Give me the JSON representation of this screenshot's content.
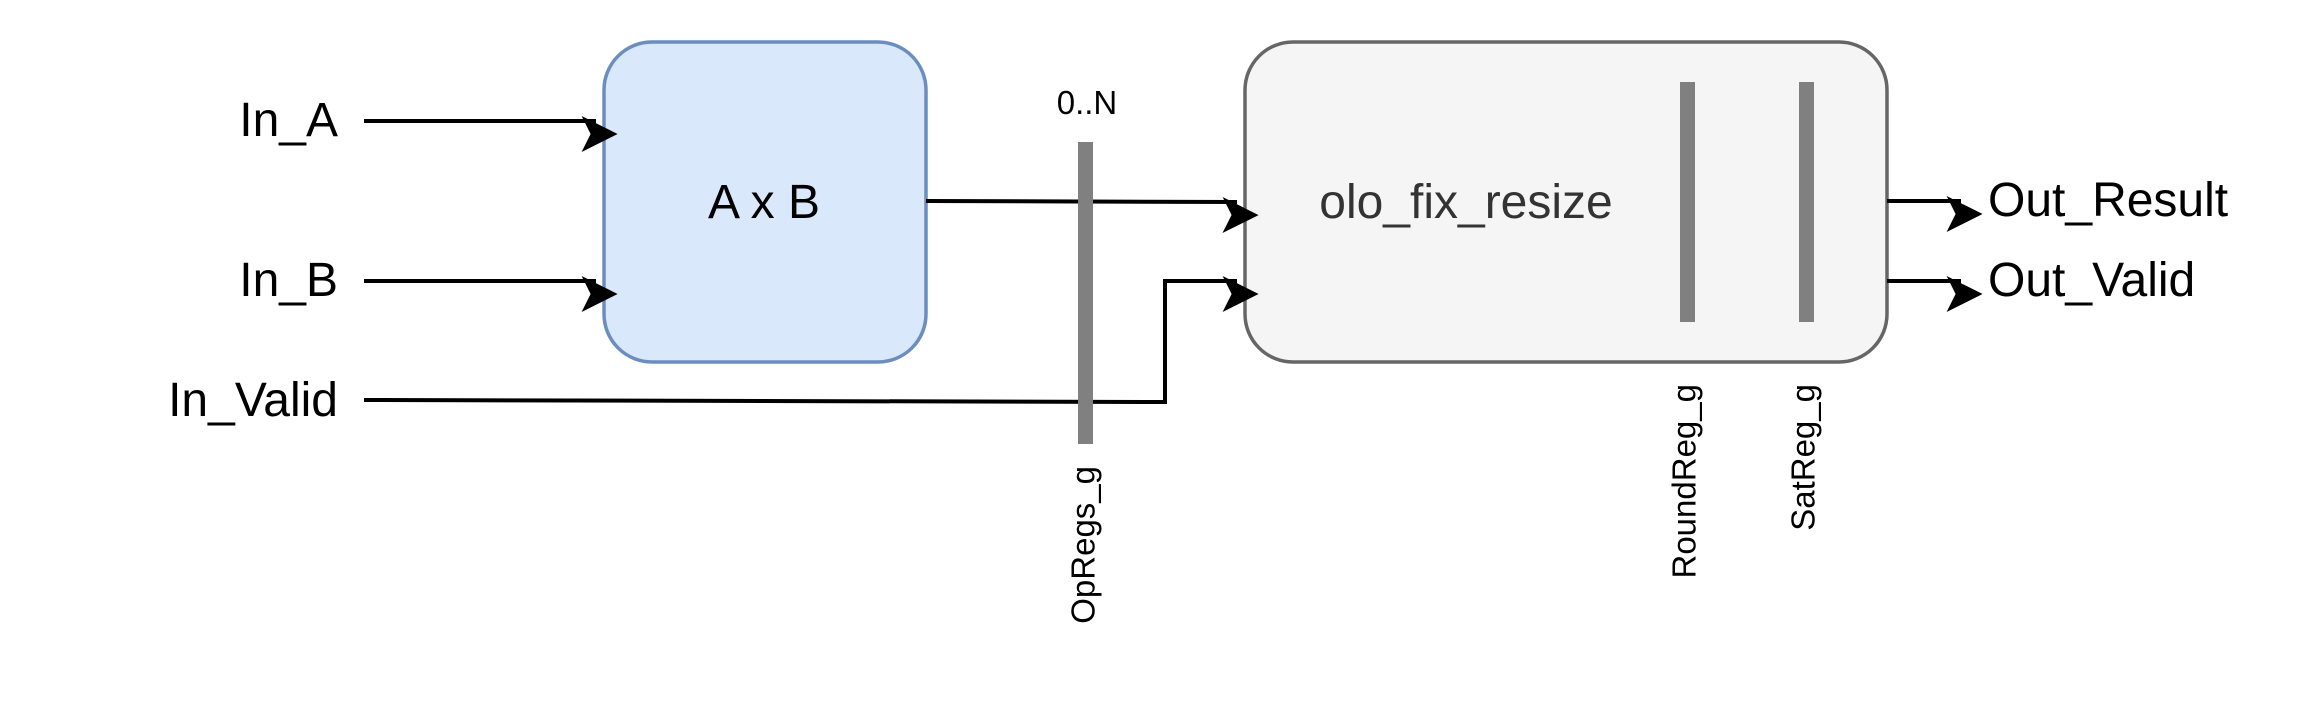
{
  "inputs": {
    "a": "In_A",
    "b": "In_B",
    "valid": "In_Valid"
  },
  "outputs": {
    "result": "Out_Result",
    "valid": "Out_Valid"
  },
  "blocks": {
    "multiplier": {
      "label": "A x B",
      "fill": "#dae8fc",
      "stroke": "#6c8ebf"
    },
    "resize": {
      "label": "olo_fix_resize",
      "fill": "#f5f5f5",
      "stroke": "#666666",
      "text_color": "#333333"
    }
  },
  "registers": {
    "opregs": {
      "label": "OpRegs_g",
      "count": "0..N"
    },
    "roundreg": {
      "label": "RoundReg_g"
    },
    "satreg": {
      "label": "SatReg_g"
    },
    "color": "#808080"
  }
}
